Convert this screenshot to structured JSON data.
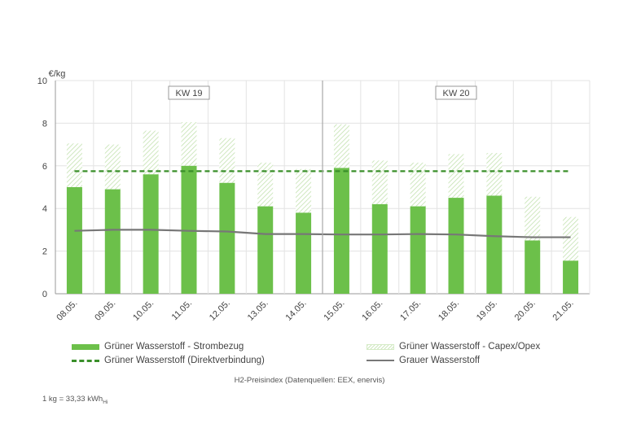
{
  "chart_data": {
    "type": "bar",
    "ylabel": "€/kg",
    "ylim": [
      0,
      10
    ],
    "yticks": [
      0,
      2,
      4,
      6,
      8,
      10
    ],
    "categories": [
      "08.05.",
      "09.05.",
      "10.05.",
      "11.05.",
      "12.05.",
      "13.05.",
      "14.05.",
      "15.05.",
      "16.05.",
      "17.05.",
      "18.05.",
      "19.05.",
      "20.05.",
      "21.05."
    ],
    "groups": [
      {
        "label": "KW 19",
        "categories": [
          "08.05.",
          "09.05.",
          "10.05.",
          "11.05.",
          "12.05.",
          "13.05.",
          "14.05."
        ]
      },
      {
        "label": "KW 20",
        "categories": [
          "15.05.",
          "16.05.",
          "17.05.",
          "18.05.",
          "19.05.",
          "20.05.",
          "21.05."
        ]
      }
    ],
    "series": [
      {
        "name": "Grüner Wasserstoff - Strombezug",
        "type": "bar-stacked",
        "color": "#6cc04a",
        "values": [
          5.0,
          4.9,
          5.6,
          6.0,
          5.2,
          4.1,
          3.8,
          5.9,
          4.2,
          4.1,
          4.5,
          4.6,
          2.5,
          1.55
        ]
      },
      {
        "name": "Grüner Wasserstoff - Capex/Opex",
        "type": "bar-stacked",
        "color": "#cfe8c0",
        "values": [
          2.05,
          2.1,
          2.05,
          2.05,
          2.1,
          2.05,
          2.05,
          2.05,
          2.05,
          2.05,
          2.05,
          2.0,
          2.05,
          2.05
        ]
      },
      {
        "name": "Grüner Wasserstoff (Direktverbindung)",
        "type": "line-dashed",
        "color": "#3a8f2a",
        "values": [
          5.75,
          5.75,
          5.75,
          5.75,
          5.75,
          5.75,
          5.75,
          5.75,
          5.75,
          5.75,
          5.75,
          5.75,
          5.75,
          5.75
        ]
      },
      {
        "name": "Grauer Wasserstoff",
        "type": "line",
        "color": "#777777",
        "values": [
          2.95,
          3.0,
          3.0,
          2.95,
          2.92,
          2.8,
          2.8,
          2.78,
          2.78,
          2.8,
          2.78,
          2.7,
          2.65,
          2.65
        ]
      }
    ],
    "grid": true,
    "legend_position": "bottom"
  },
  "source_text": "H2-Preisindex (Datenquellen: EEX, enervis)",
  "footnote": {
    "text": "1 kg = 33,33 kWh",
    "sub": "Hi"
  }
}
